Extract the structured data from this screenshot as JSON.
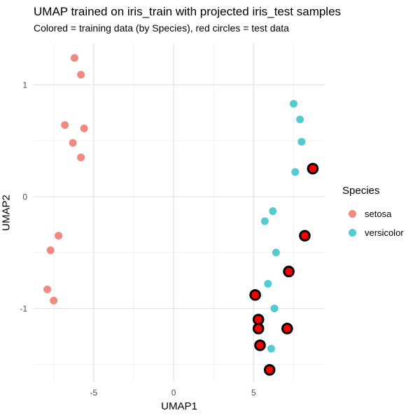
{
  "header": {
    "title": "UMAP trained on iris_train with projected iris_test samples",
    "subtitle": "Colored = training data (by Species), red circles = test data"
  },
  "chart_data": {
    "type": "scatter",
    "title": "UMAP trained on iris_train with projected iris_test samples",
    "subtitle": "Colored = training data (by Species), red circles = test data",
    "xlabel": "UMAP1",
    "ylabel": "UMAP2",
    "xlim": [
      -8.8,
      9.45
    ],
    "ylim": [
      -1.66,
      1.37
    ],
    "x_major_ticks": [
      -5,
      0,
      5
    ],
    "x_minor_ticks": [
      -7.5,
      -2.5,
      2.5,
      7.5
    ],
    "y_major_ticks": [
      -1,
      0,
      1
    ],
    "y_minor_ticks": [
      -1.5,
      -0.5,
      0.5
    ],
    "grid": "major-and-minor",
    "legend_position": "right",
    "colors": {
      "grid_major": "#e3e3e3",
      "grid_minor": "#f0f0f0",
      "tick_text": "#4d4d4d",
      "setosa": "#f1897f",
      "versicolor": "#54cbd1",
      "test_fill": "#fe0000",
      "test_stroke": "#000000"
    },
    "series": [
      {
        "name": "setosa",
        "role": "train",
        "color": "#f1897f",
        "points": [
          [
            -6.2,
            1.24
          ],
          [
            -5.8,
            1.09
          ],
          [
            -6.8,
            0.64
          ],
          [
            -5.6,
            0.61
          ],
          [
            -6.3,
            0.48
          ],
          [
            -5.8,
            0.35
          ],
          [
            -7.2,
            -0.35
          ],
          [
            -7.7,
            -0.48
          ],
          [
            -7.9,
            -0.83
          ],
          [
            -7.5,
            -0.93
          ]
        ]
      },
      {
        "name": "versicolor",
        "role": "train",
        "color": "#54cbd1",
        "points": [
          [
            7.5,
            0.83
          ],
          [
            7.9,
            0.69
          ],
          [
            8.0,
            0.49
          ],
          [
            7.6,
            0.22
          ],
          [
            6.2,
            -0.13
          ],
          [
            5.7,
            -0.22
          ],
          [
            6.4,
            -0.5
          ],
          [
            5.9,
            -0.78
          ],
          [
            6.3,
            -1.0
          ],
          [
            6.1,
            -1.36
          ]
        ]
      },
      {
        "name": "test data",
        "role": "test",
        "color": "#fe0000",
        "stroke": "#000000",
        "points": [
          [
            8.7,
            0.25
          ],
          [
            8.2,
            -0.35
          ],
          [
            7.2,
            -0.67
          ],
          [
            5.1,
            -0.88
          ],
          [
            5.3,
            -1.1
          ],
          [
            5.3,
            -1.18
          ],
          [
            7.1,
            -1.18
          ],
          [
            5.4,
            -1.33
          ],
          [
            6.0,
            -1.55
          ]
        ]
      }
    ],
    "legend": {
      "title": "Species",
      "items": [
        {
          "label": "setosa",
          "color": "#f1897f"
        },
        {
          "label": "versicolor",
          "color": "#54cbd1"
        }
      ]
    }
  }
}
